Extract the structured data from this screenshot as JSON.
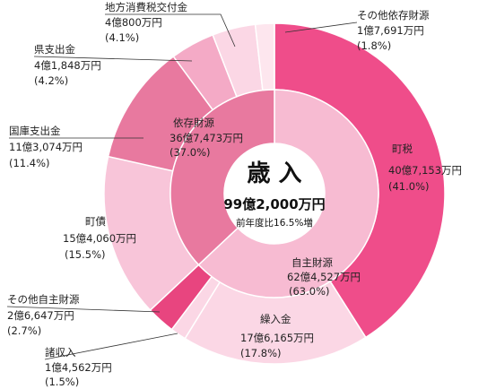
{
  "chart_data": {
    "type": "pie",
    "center": {
      "title": "歳 入",
      "total": "99億2,000万円",
      "note": "前年度比16.5%増"
    },
    "inner": [
      {
        "name": "自主財源",
        "amount": "62億4,527万円",
        "percent": "(63.0%)",
        "value": 63.0,
        "color": "#f7bbd2"
      },
      {
        "name": "依存財源",
        "amount": "36億7,473万円",
        "percent": "(37.0%)",
        "value": 37.0,
        "color": "#e8799f"
      }
    ],
    "outer": [
      {
        "name": "町税",
        "amount": "40億7,153万円",
        "percent": "(41.0%)",
        "value": 41.0,
        "color": "#ef4d8a"
      },
      {
        "name": "繰入金",
        "amount": "17億6,165万円",
        "percent": "(17.8%)",
        "value": 17.8,
        "color": "#fbd7e5"
      },
      {
        "name": "諸収入",
        "amount": "1億4,562万円",
        "percent": "(1.5%)",
        "value": 1.5,
        "color": "#fbd7e5"
      },
      {
        "name": "その他自主財源",
        "amount": "2億6,647万円",
        "percent": "(2.7%)",
        "value": 2.7,
        "color": "#e8457f"
      },
      {
        "name": "町債",
        "amount": "15億4,060万円",
        "percent": "(15.5%)",
        "value": 15.5,
        "color": "#f8c5d9"
      },
      {
        "name": "国庫支出金",
        "amount": "11億3,074万円",
        "percent": "(11.4%)",
        "value": 11.4,
        "color": "#e8799f"
      },
      {
        "name": "県支出金",
        "amount": "4億1,848万円",
        "percent": "(4.2%)",
        "value": 4.2,
        "color": "#f4aac6"
      },
      {
        "name": "地方消費税交付金",
        "amount": "4億800万円",
        "percent": "(4.1%)",
        "value": 4.1,
        "color": "#fbd7e5"
      },
      {
        "name": "その他依存財源",
        "amount": "1億7,691万円",
        "percent": "(1.8%)",
        "value": 1.8,
        "color": "#fde6ee"
      }
    ]
  }
}
